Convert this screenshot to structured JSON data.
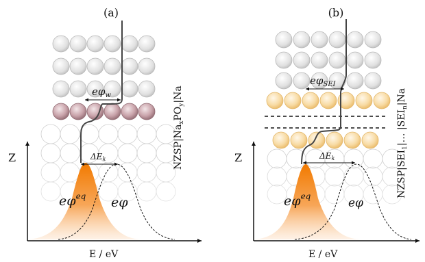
{
  "panels": [
    {
      "id": "a",
      "label": "(a)",
      "z_label": "Z",
      "x_label": "E / eV",
      "work_function": "eφ",
      "work_function_sub": "w",
      "delta_ek": "ΔE",
      "delta_ek_sub": "k",
      "eq_label": "eφ",
      "eq_sup": "eq",
      "shifted_label": "eφ",
      "interface": {
        "prefix": "NZSP|Na",
        "sub1": "x",
        "mid": "PO",
        "sub2": "y",
        "suffix": "|Na"
      }
    },
    {
      "id": "b",
      "label": "(b)",
      "z_label": "Z",
      "x_label": "E / eV",
      "work_function": "eφ",
      "work_function_sub": "SEI",
      "delta_ek": "ΔE",
      "delta_ek_sub": "k",
      "eq_label": "eφ",
      "eq_sup": "eq",
      "shifted_label": "eφ",
      "interface": {
        "prefix": "NZSP|SEI",
        "sub1": "1",
        "mid": "|… |SEI",
        "sub2": "n",
        "suffix": "|Na"
      }
    }
  ],
  "colors": {
    "orange": "#f7941d",
    "mauve": "#b58a93",
    "grey_sphere": "#c9c9c9",
    "yellow_sphere": "#f5cf8a"
  }
}
